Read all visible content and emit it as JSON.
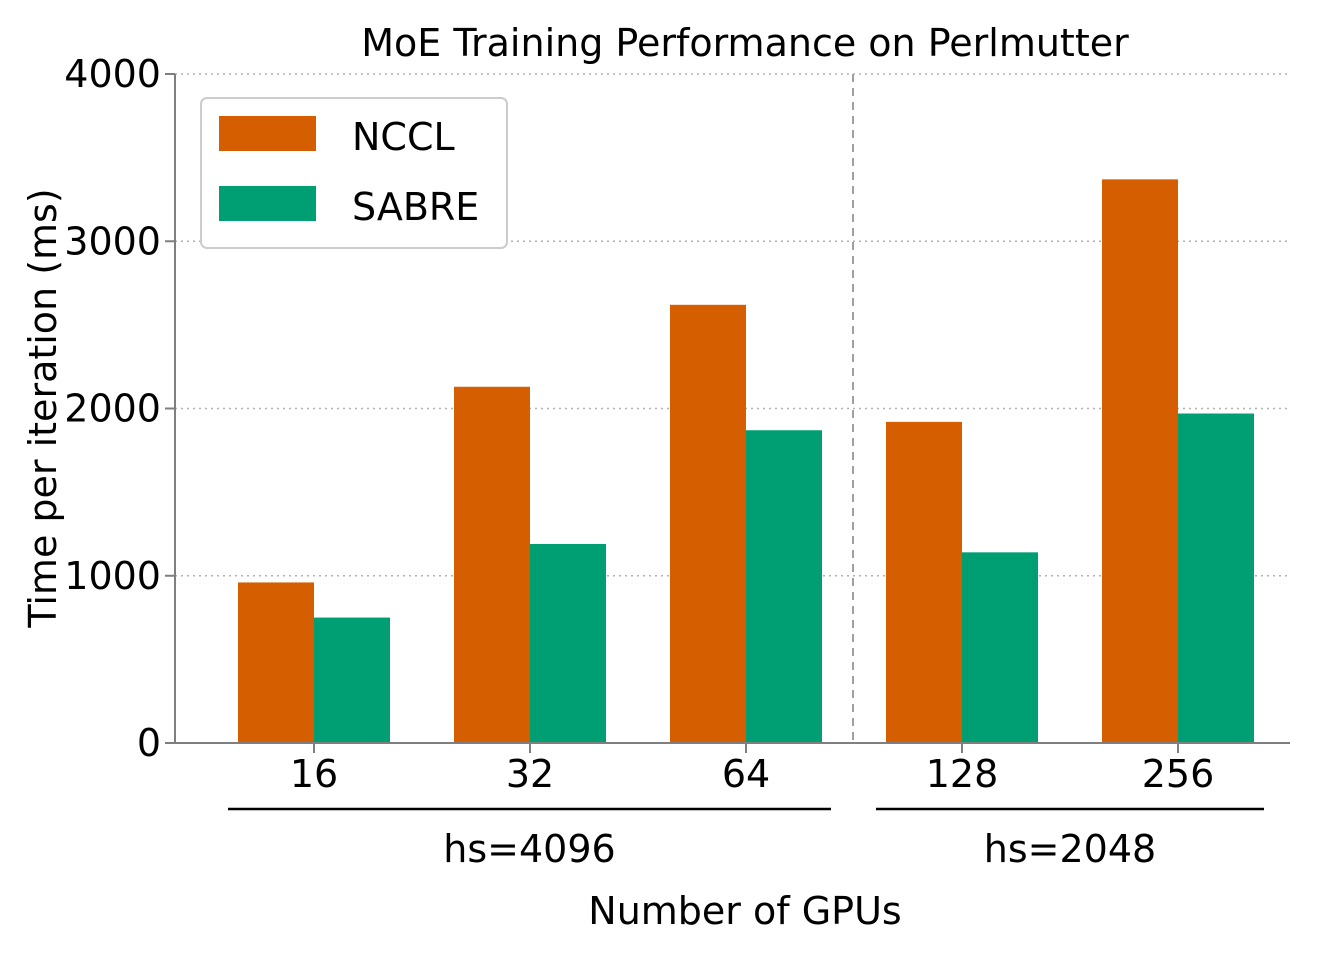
{
  "chart_data": {
    "type": "bar",
    "title": "MoE Training Performance on Perlmutter",
    "xlabel": "Number of GPUs",
    "ylabel": "Time per iteration (ms)",
    "categories": [
      "16",
      "32",
      "64",
      "128",
      "256"
    ],
    "series": [
      {
        "name": "NCCL",
        "color": "#d55e00",
        "values": [
          960,
          2130,
          2620,
          1920,
          3370
        ]
      },
      {
        "name": "SABRE",
        "color": "#009e73",
        "values": [
          750,
          1190,
          1870,
          1140,
          1970
        ]
      }
    ],
    "yticks": [
      "0",
      "1000",
      "2000",
      "3000",
      "4000"
    ],
    "ylim": [
      0,
      4000
    ],
    "groups": [
      {
        "label": "hs=4096",
        "categories": [
          "16",
          "32",
          "64"
        ]
      },
      {
        "label": "hs=2048",
        "categories": [
          "128",
          "256"
        ]
      }
    ],
    "grid": "y dotted",
    "legend_position": "top-left"
  }
}
